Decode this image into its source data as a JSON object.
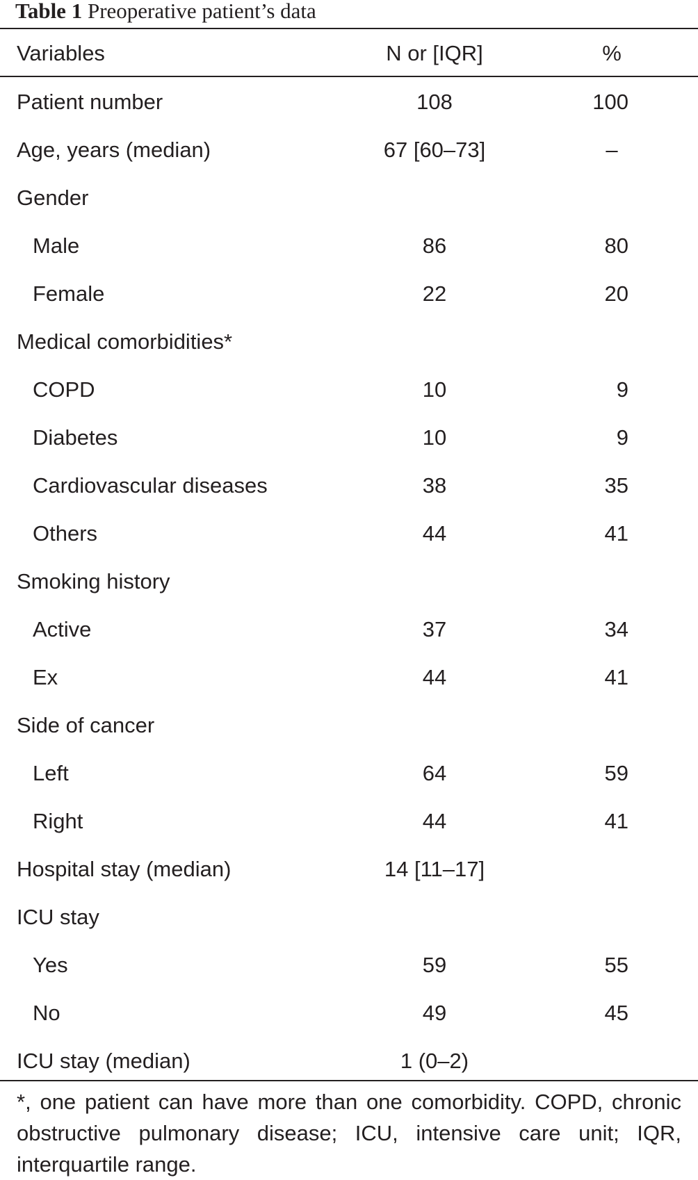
{
  "caption": {
    "label": "Table 1",
    "title": "Preoperative patient’s data"
  },
  "header": {
    "variables": "Variables",
    "n": "N or [IQR]",
    "pct": "%"
  },
  "rows": [
    {
      "label": "Patient number",
      "n": "108",
      "pct": "100",
      "indent": false
    },
    {
      "label": "Age, years (median)",
      "n": "67 [60–73]",
      "pct": "–",
      "indent": false
    },
    {
      "label": "Gender",
      "n": "",
      "pct": "",
      "indent": false
    },
    {
      "label": "Male",
      "n": "86",
      "pct": "80",
      "indent": true
    },
    {
      "label": "Female",
      "n": "22",
      "pct": "20",
      "indent": true
    },
    {
      "label": "Medical comorbidities*",
      "n": "",
      "pct": "",
      "indent": false
    },
    {
      "label": "COPD",
      "n": "10",
      "pct": "9",
      "indent": true
    },
    {
      "label": "Diabetes",
      "n": "10",
      "pct": "9",
      "indent": true
    },
    {
      "label": "Cardiovascular diseases",
      "n": "38",
      "pct": "35",
      "indent": true
    },
    {
      "label": "Others",
      "n": "44",
      "pct": "41",
      "indent": true
    },
    {
      "label": "Smoking history",
      "n": "",
      "pct": "",
      "indent": false
    },
    {
      "label": "Active",
      "n": "37",
      "pct": "34",
      "indent": true
    },
    {
      "label": "Ex",
      "n": "44",
      "pct": "41",
      "indent": true
    },
    {
      "label": "Side of cancer",
      "n": "",
      "pct": "",
      "indent": false
    },
    {
      "label": "Left",
      "n": "64",
      "pct": "59",
      "indent": true
    },
    {
      "label": "Right",
      "n": "44",
      "pct": "41",
      "indent": true
    },
    {
      "label": "Hospital stay (median)",
      "n": "14 [11–17]",
      "pct": "",
      "indent": false
    },
    {
      "label": "ICU stay",
      "n": "",
      "pct": "",
      "indent": false
    },
    {
      "label": "Yes",
      "n": "59",
      "pct": "55",
      "indent": true
    },
    {
      "label": "No",
      "n": "49",
      "pct": "45",
      "indent": true
    },
    {
      "label": "ICU stay (median)",
      "n": "1 (0–2)",
      "pct": "",
      "indent": false
    }
  ],
  "footnote": "*, one patient can have more than one comorbidity. COPD, chronic obstructive pulmonary disease; ICU, intensive care unit; IQR, interquartile range."
}
